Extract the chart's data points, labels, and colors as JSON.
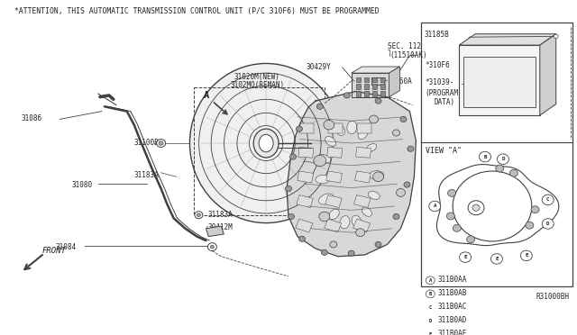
{
  "title": "*ATTENTION, THIS AUTOMATIC TRANSMISSION CONTROL UNIT (P/C 310F6) MUST BE PROGRAMMED",
  "diagram_ref": "R31000BH",
  "bg_color": "#ffffff",
  "line_color": "#404040",
  "text_color": "#222222",
  "sf": 5.5,
  "lf": 6.5,
  "view_a_labels": [
    [
      "A",
      "311B0AA"
    ],
    [
      "B",
      "311B0AB"
    ],
    [
      "C",
      "311B0AC"
    ],
    [
      "D",
      "311B0AD"
    ],
    [
      "E",
      "311B0AE"
    ]
  ],
  "view_a_title": "VIEW \"A\"",
  "diagram_ref_label": "R31000BH"
}
